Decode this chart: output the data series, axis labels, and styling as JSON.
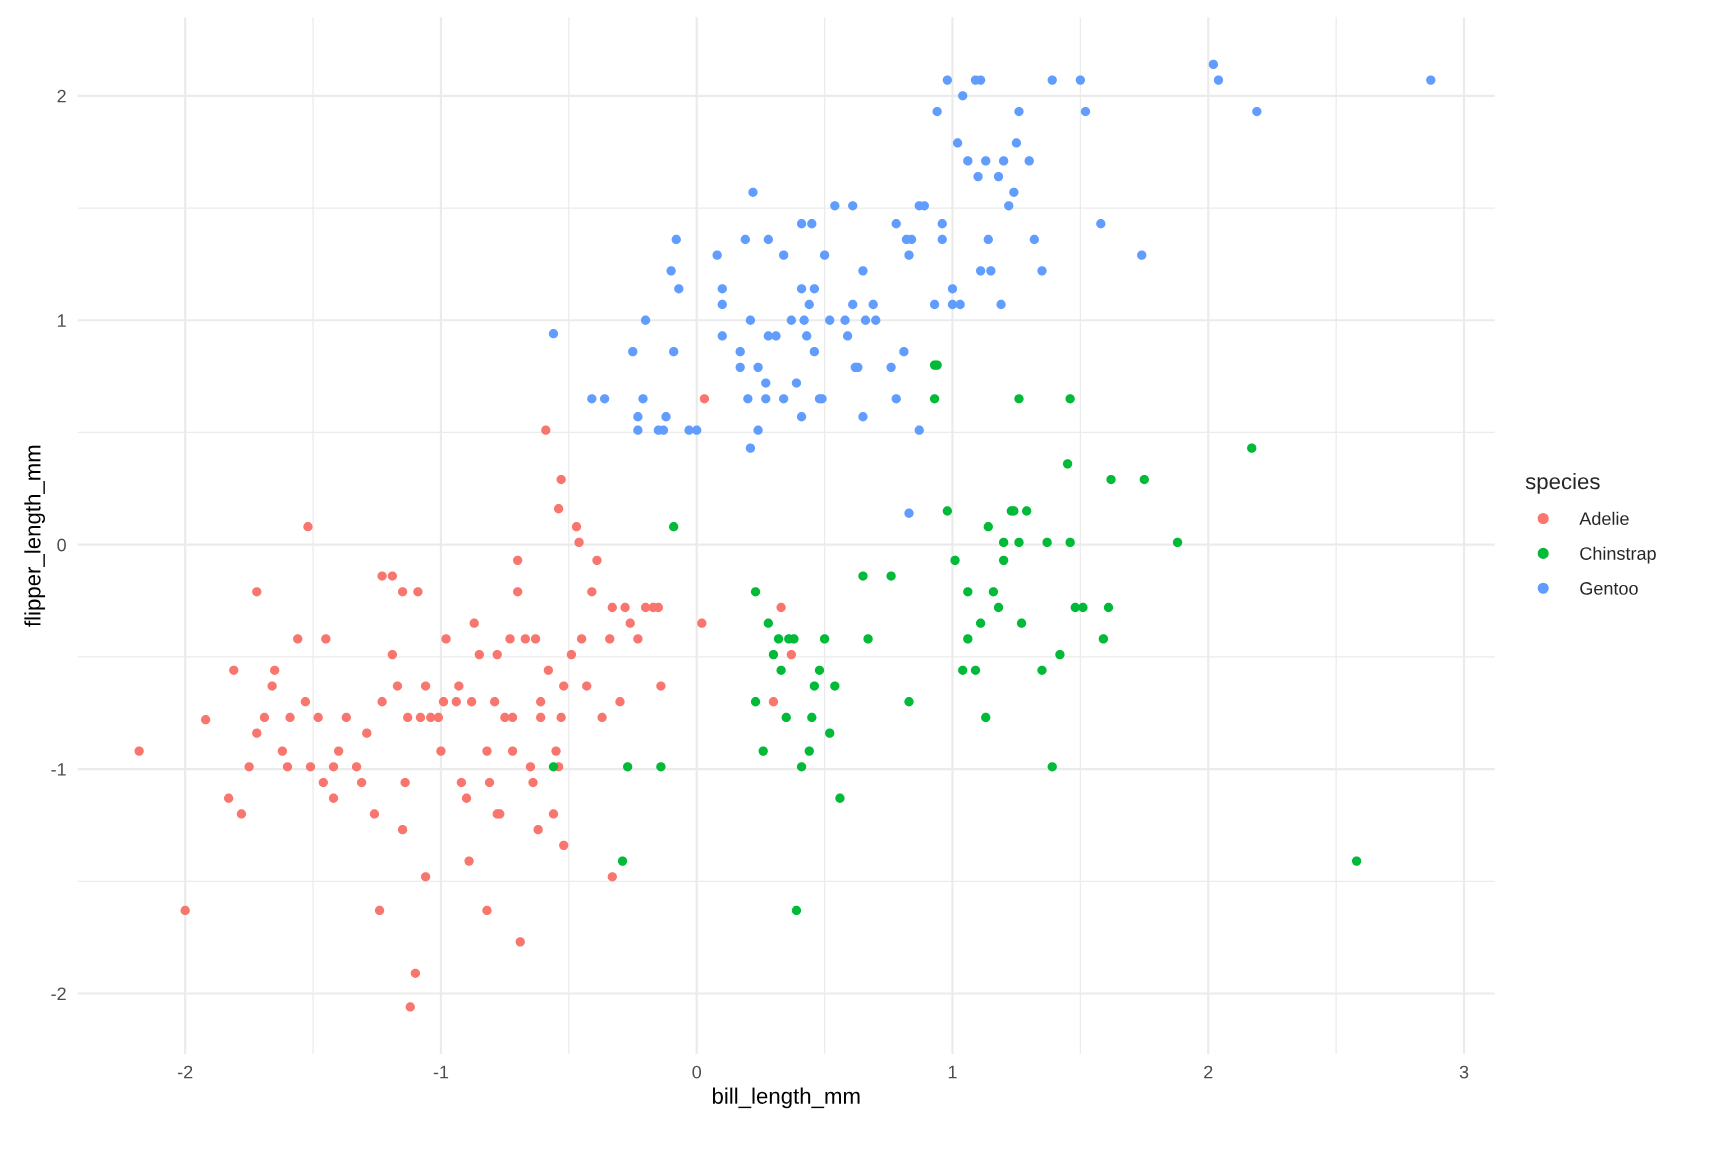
{
  "chart_data": {
    "type": "scatter",
    "xlabel": "bill_length_mm",
    "ylabel": "flipper_length_mm",
    "legend_title": "species",
    "legend": "right",
    "grid": true,
    "marker": "circle",
    "xlim": [
      -2.42,
      3.12
    ],
    "ylim": [
      -2.27,
      2.35
    ],
    "xticks": [
      -2,
      {
        "value": -1.5,
        "label": null
      },
      -1,
      {
        "value": -0.5,
        "label": null
      },
      0,
      {
        "value": 0.5,
        "label": null
      },
      1,
      {
        "value": 1.5,
        "label": null
      },
      2,
      {
        "value": 2.5,
        "label": null
      },
      3
    ],
    "yticks": [
      -2,
      {
        "value": -1.5,
        "label": null
      },
      -1,
      {
        "value": -0.5,
        "label": null
      },
      0,
      {
        "value": 0.5,
        "label": null
      },
      1,
      {
        "value": 1.5,
        "label": null
      },
      2
    ],
    "series": [
      {
        "name": "Adelie",
        "color": "#f8766d",
        "x": [
          -2.18,
          -2.0,
          -1.92,
          -1.83,
          -1.81,
          -1.78,
          -1.75,
          -1.72,
          -1.72,
          -1.69,
          -1.66,
          -1.65,
          -1.62,
          -1.6,
          -1.59,
          -1.56,
          -1.53,
          -1.52,
          -1.51,
          -1.48,
          -1.46,
          -1.45,
          -1.42,
          -1.42,
          -1.4,
          -1.37,
          -1.33,
          -1.31,
          -1.29,
          -1.26,
          -1.24,
          -1.23,
          -1.23,
          -1.19,
          -1.19,
          -1.17,
          -1.15,
          -1.15,
          -1.14,
          -1.13,
          -1.1,
          -1.12,
          -1.09,
          -1.08,
          -1.06,
          -1.06,
          -1.04,
          -1.01,
          -1.0,
          -0.99,
          -0.98,
          -0.94,
          -0.93,
          -0.92,
          -0.9,
          -0.89,
          -0.88,
          -0.87,
          -0.85,
          -0.82,
          -0.82,
          -0.81,
          -0.79,
          -0.78,
          -0.77,
          -0.75,
          -0.72,
          -0.7,
          -0.69,
          -0.67,
          -0.65,
          -0.63,
          -0.62,
          -0.61,
          -0.59,
          -0.58,
          -0.56,
          -0.54,
          -0.53,
          -0.52,
          -0.52,
          -0.49,
          -0.47,
          -0.46,
          -0.45,
          -0.43,
          -0.41,
          -0.39,
          -0.37,
          -0.34,
          -0.33,
          -0.3,
          -0.28,
          -0.26,
          -0.23,
          -0.2,
          -0.17,
          -0.15,
          -0.14,
          0.03,
          0.02,
          0.33,
          0.37,
          0.3,
          -0.33,
          -0.73,
          -0.78,
          -0.72,
          -0.61,
          -0.53,
          -0.64,
          -0.54,
          -0.55,
          -0.7
        ],
        "values": [
          -0.92,
          -1.63,
          -0.78,
          -1.13,
          -0.56,
          -1.2,
          -0.99,
          -0.21,
          -0.84,
          -0.77,
          -0.63,
          -0.56,
          -0.92,
          -0.99,
          -0.77,
          -0.42,
          -0.7,
          0.08,
          -0.99,
          -0.77,
          -1.06,
          -0.42,
          -1.13,
          -0.99,
          -0.92,
          -0.77,
          -0.99,
          -1.06,
          -0.84,
          -1.2,
          -1.63,
          -0.14,
          -0.7,
          -0.14,
          -0.49,
          -0.63,
          -0.21,
          -1.27,
          -1.06,
          -0.77,
          -1.91,
          -2.06,
          -0.21,
          -0.77,
          -0.63,
          -1.48,
          -0.77,
          -0.77,
          -0.92,
          -0.7,
          -0.42,
          -0.7,
          -0.63,
          -1.06,
          -1.13,
          -1.41,
          -0.7,
          -0.35,
          -0.49,
          -0.92,
          -1.63,
          -1.06,
          -0.7,
          -1.2,
          -1.2,
          -0.77,
          -0.92,
          -0.07,
          -1.77,
          -0.42,
          -0.99,
          -0.42,
          -1.27,
          -0.77,
          0.51,
          -0.56,
          -1.2,
          0.16,
          0.29,
          -0.63,
          -1.34,
          -0.49,
          0.08,
          0.01,
          -0.42,
          -0.63,
          -0.21,
          -0.07,
          -0.77,
          -0.42,
          -0.28,
          -0.7,
          -0.28,
          -0.35,
          -0.42,
          -0.28,
          -0.28,
          -0.28,
          -0.63,
          0.65,
          -0.35,
          -0.28,
          -0.49,
          -0.7,
          -1.48,
          -0.42,
          -0.49,
          -0.77,
          -0.7,
          -0.77,
          -1.06,
          -0.99,
          -0.92,
          -0.21
        ]
      },
      {
        "name": "Chinstrap",
        "color": "#00ba38",
        "x": [
          -0.56,
          -0.29,
          -0.27,
          -0.14,
          -0.09,
          0.23,
          0.23,
          0.26,
          0.28,
          0.3,
          0.32,
          0.33,
          0.35,
          0.36,
          0.38,
          0.39,
          0.41,
          0.44,
          0.45,
          0.46,
          0.48,
          0.5,
          0.52,
          0.54,
          0.56,
          0.65,
          0.67,
          0.76,
          0.83,
          0.93,
          0.94,
          0.93,
          0.98,
          1.01,
          1.04,
          1.06,
          1.06,
          1.09,
          1.11,
          1.13,
          1.14,
          1.16,
          1.18,
          1.2,
          1.2,
          1.23,
          1.24,
          1.26,
          1.27,
          1.29,
          1.37,
          1.39,
          1.42,
          1.45,
          1.46,
          1.46,
          1.48,
          1.51,
          1.62,
          1.61,
          1.75,
          1.88,
          2.17,
          2.58,
          1.59,
          1.26,
          1.35
        ],
        "values": [
          -0.99,
          -1.41,
          -0.99,
          -0.99,
          0.08,
          -0.21,
          -0.7,
          -0.92,
          -0.35,
          -0.49,
          -0.42,
          -0.56,
          -0.77,
          -0.42,
          -0.42,
          -1.63,
          -0.99,
          -0.92,
          -0.77,
          -0.63,
          -0.56,
          -0.42,
          -0.84,
          -0.63,
          -1.13,
          -0.14,
          -0.42,
          -0.14,
          -0.7,
          0.8,
          0.8,
          0.65,
          0.15,
          -0.07,
          -0.56,
          -0.42,
          -0.21,
          -0.56,
          -0.35,
          -0.77,
          0.08,
          -0.21,
          -0.28,
          0.01,
          -0.07,
          0.15,
          0.15,
          0.01,
          -0.35,
          0.15,
          0.01,
          -0.99,
          -0.49,
          0.36,
          0.65,
          0.01,
          -0.28,
          -0.28,
          0.29,
          -0.28,
          0.29,
          0.01,
          0.43,
          -1.41,
          -0.42,
          0.65,
          -0.56
        ]
      },
      {
        "name": "Gentoo",
        "color": "#619cff",
        "x": [
          -0.56,
          -0.41,
          -0.36,
          -0.23,
          -0.23,
          -0.21,
          -0.15,
          -0.13,
          -0.12,
          -0.1,
          -0.09,
          -0.08,
          -0.07,
          -0.03,
          0.0,
          -0.2,
          -0.25,
          0.08,
          0.1,
          0.1,
          0.1,
          0.17,
          0.17,
          0.19,
          0.2,
          0.21,
          0.21,
          0.22,
          0.24,
          0.24,
          0.27,
          0.27,
          0.28,
          0.28,
          0.31,
          0.34,
          0.34,
          0.37,
          0.39,
          0.41,
          0.41,
          0.41,
          0.42,
          0.43,
          0.44,
          0.45,
          0.46,
          0.46,
          0.48,
          0.49,
          0.5,
          0.52,
          0.54,
          0.58,
          0.59,
          0.61,
          0.61,
          0.62,
          0.63,
          0.65,
          0.65,
          0.66,
          0.69,
          0.7,
          0.76,
          0.78,
          0.78,
          0.81,
          0.82,
          0.83,
          0.84,
          0.87,
          0.87,
          0.89,
          0.93,
          0.94,
          0.96,
          0.96,
          0.98,
          1.0,
          1.0,
          1.02,
          1.03,
          1.04,
          1.06,
          1.09,
          1.11,
          1.1,
          1.11,
          1.13,
          1.14,
          1.15,
          1.18,
          1.19,
          1.2,
          1.22,
          1.24,
          1.25,
          1.26,
          1.3,
          1.32,
          1.35,
          1.39,
          1.5,
          1.52,
          1.58,
          1.74,
          2.02,
          2.04,
          2.19,
          2.87,
          0.83
        ],
        "values": [
          0.94,
          0.65,
          0.65,
          0.51,
          0.57,
          0.65,
          0.51,
          0.51,
          0.57,
          1.22,
          0.86,
          1.36,
          1.14,
          0.51,
          0.51,
          1.0,
          0.86,
          1.29,
          1.14,
          1.07,
          0.93,
          0.86,
          0.79,
          1.36,
          0.65,
          0.43,
          1.0,
          1.57,
          0.79,
          0.51,
          0.65,
          0.72,
          1.36,
          0.93,
          0.93,
          1.29,
          0.65,
          1.0,
          0.72,
          0.57,
          1.43,
          1.14,
          1.0,
          0.93,
          1.07,
          1.43,
          1.14,
          0.86,
          0.65,
          0.65,
          1.29,
          1.0,
          1.51,
          1.0,
          0.93,
          1.51,
          1.07,
          0.79,
          0.79,
          0.57,
          1.22,
          1.0,
          1.07,
          1.0,
          0.79,
          0.65,
          1.43,
          0.86,
          1.36,
          1.29,
          1.36,
          1.51,
          0.51,
          1.51,
          1.07,
          1.93,
          1.36,
          1.43,
          2.07,
          1.14,
          1.07,
          1.79,
          1.07,
          2.0,
          1.71,
          2.07,
          2.07,
          1.64,
          1.22,
          1.71,
          1.36,
          1.22,
          1.64,
          1.07,
          1.71,
          1.51,
          1.57,
          1.79,
          1.93,
          1.71,
          1.36,
          1.22,
          2.07,
          2.07,
          1.93,
          1.43,
          1.29,
          2.14,
          2.07,
          1.93,
          2.07,
          0.14
        ]
      }
    ]
  }
}
